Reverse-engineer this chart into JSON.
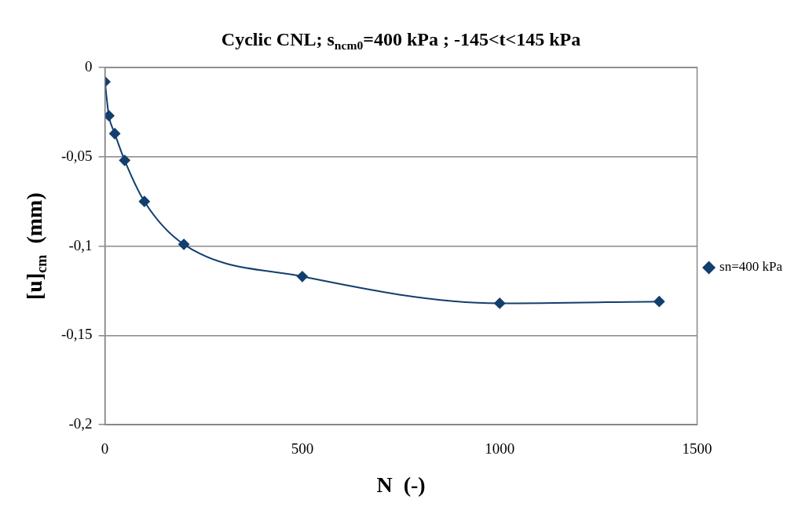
{
  "chart_data": {
    "type": "line",
    "title": "Cyclic CNL; s$_{ncm0}$=400 kPa ; -145<t<145 kPa",
    "xlabel": "N  (-)",
    "ylabel": "[u]$_{cm}$  (mm)",
    "x": [
      0,
      10,
      25,
      50,
      100,
      200,
      500,
      1000,
      1404
    ],
    "series": [
      {
        "name": "sn=400 kPa",
        "color": "#123f6e",
        "values": [
          -0.008,
          -0.027,
          -0.037,
          -0.052,
          -0.075,
          -0.099,
          -0.117,
          -0.132,
          -0.131
        ]
      }
    ],
    "xlim": [
      0,
      1500
    ],
    "xticks": [
      0,
      500,
      1000,
      1500
    ],
    "ylim": [
      -0.2,
      0
    ],
    "yticks": [
      {
        "value": -0.2,
        "label": "-0,2"
      },
      {
        "value": -0.15,
        "label": "-0,15"
      },
      {
        "value": -0.1,
        "label": "-0,1"
      },
      {
        "value": -0.05,
        "label": "-0,05"
      },
      0
    ],
    "grid": "y",
    "legend": "right",
    "marker": "diamond",
    "line_style": "solid"
  }
}
